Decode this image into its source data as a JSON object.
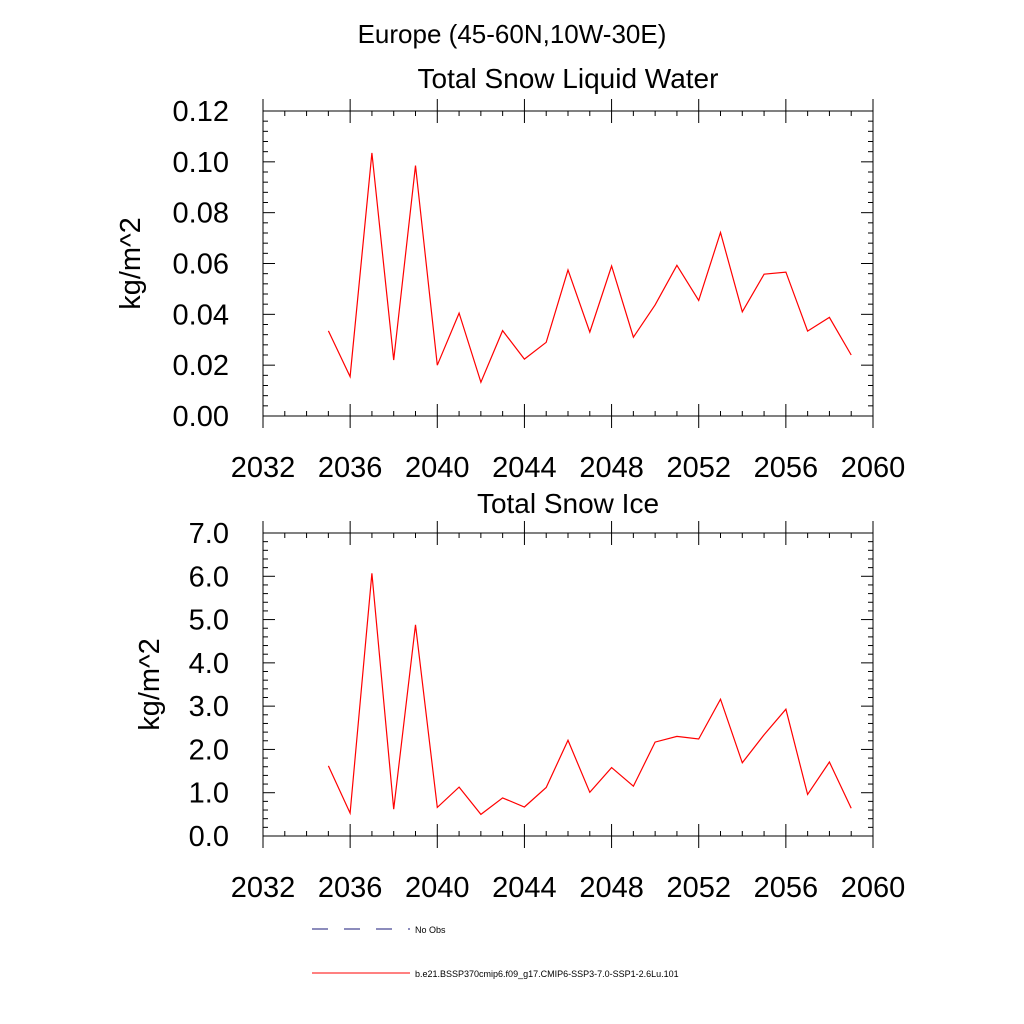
{
  "figure_title": "Europe (45-60N,10W-30E)",
  "chart_data": [
    {
      "type": "line",
      "title": "Total Snow Liquid Water",
      "xlabel": "",
      "ylabel": "kg/m^2",
      "xlim": [
        2032,
        2060
      ],
      "ylim": [
        0.0,
        0.12
      ],
      "x_ticks": [
        2032,
        2036,
        2040,
        2044,
        2048,
        2052,
        2056,
        2060
      ],
      "x_tick_labels": [
        "2032",
        "2036",
        "2040",
        "2044",
        "2048",
        "2052",
        "2056",
        "2060"
      ],
      "y_ticks": [
        0.0,
        0.02,
        0.04,
        0.06,
        0.08,
        0.1,
        0.12
      ],
      "y_tick_labels": [
        "0.00",
        "0.02",
        "0.04",
        "0.06",
        "0.08",
        "0.10",
        "0.12"
      ],
      "x_minor_step": 1,
      "y_minor_step": 0.004,
      "grid": false,
      "series": [
        {
          "name": "b.e21.BSSP370cmip6.f09_g17.CMIP6-SSP3-7.0-SSP1-2.6Lu.101",
          "color": "#ff0000",
          "x": [
            2035,
            2036,
            2037,
            2038,
            2039,
            2040,
            2041,
            2042,
            2043,
            2044,
            2045,
            2046,
            2047,
            2048,
            2049,
            2050,
            2051,
            2052,
            2053,
            2054,
            2055,
            2056,
            2057,
            2058,
            2059
          ],
          "y": [
            0.0335,
            0.0155,
            0.1035,
            0.022,
            0.0985,
            0.02,
            0.0405,
            0.0133,
            0.0336,
            0.0224,
            0.029,
            0.0575,
            0.033,
            0.059,
            0.031,
            0.0437,
            0.0593,
            0.0455,
            0.0722,
            0.041,
            0.0558,
            0.0566,
            0.0334,
            0.0388,
            0.024
          ]
        }
      ]
    },
    {
      "type": "line",
      "title": "Total Snow Ice",
      "xlabel": "",
      "ylabel": "kg/m^2",
      "xlim": [
        2032,
        2060
      ],
      "ylim": [
        0.0,
        7.0
      ],
      "x_ticks": [
        2032,
        2036,
        2040,
        2044,
        2048,
        2052,
        2056,
        2060
      ],
      "x_tick_labels": [
        "2032",
        "2036",
        "2040",
        "2044",
        "2048",
        "2052",
        "2056",
        "2060"
      ],
      "y_ticks": [
        0.0,
        1.0,
        2.0,
        3.0,
        4.0,
        5.0,
        6.0,
        7.0
      ],
      "y_tick_labels": [
        "0.0",
        "1.0",
        "2.0",
        "3.0",
        "4.0",
        "5.0",
        "6.0",
        "7.0"
      ],
      "x_minor_step": 1,
      "y_minor_step": 0.2,
      "grid": false,
      "series": [
        {
          "name": "b.e21.BSSP370cmip6.f09_g17.CMIP6-SSP3-7.0-SSP1-2.6Lu.101",
          "color": "#ff0000",
          "x": [
            2035,
            2036,
            2037,
            2038,
            2039,
            2040,
            2041,
            2042,
            2043,
            2044,
            2045,
            2046,
            2047,
            2048,
            2049,
            2050,
            2051,
            2052,
            2053,
            2054,
            2055,
            2056,
            2057,
            2058,
            2059
          ],
          "y": [
            1.62,
            0.53,
            6.07,
            0.62,
            4.88,
            0.66,
            1.13,
            0.5,
            0.88,
            0.67,
            1.12,
            2.21,
            1.01,
            1.58,
            1.15,
            2.17,
            2.3,
            2.24,
            3.16,
            1.69,
            2.34,
            2.93,
            0.96,
            1.71,
            0.64
          ]
        }
      ]
    }
  ],
  "legend": {
    "placement": "bottom-center",
    "items": [
      {
        "label": "No Obs",
        "color": "#1a1a7a",
        "style": "dashed"
      },
      {
        "label": "b.e21.BSSP370cmip6.f09_g17.CMIP6-SSP3-7.0-SSP1-2.6Lu.101",
        "color": "#ff0000",
        "style": "solid"
      }
    ]
  }
}
